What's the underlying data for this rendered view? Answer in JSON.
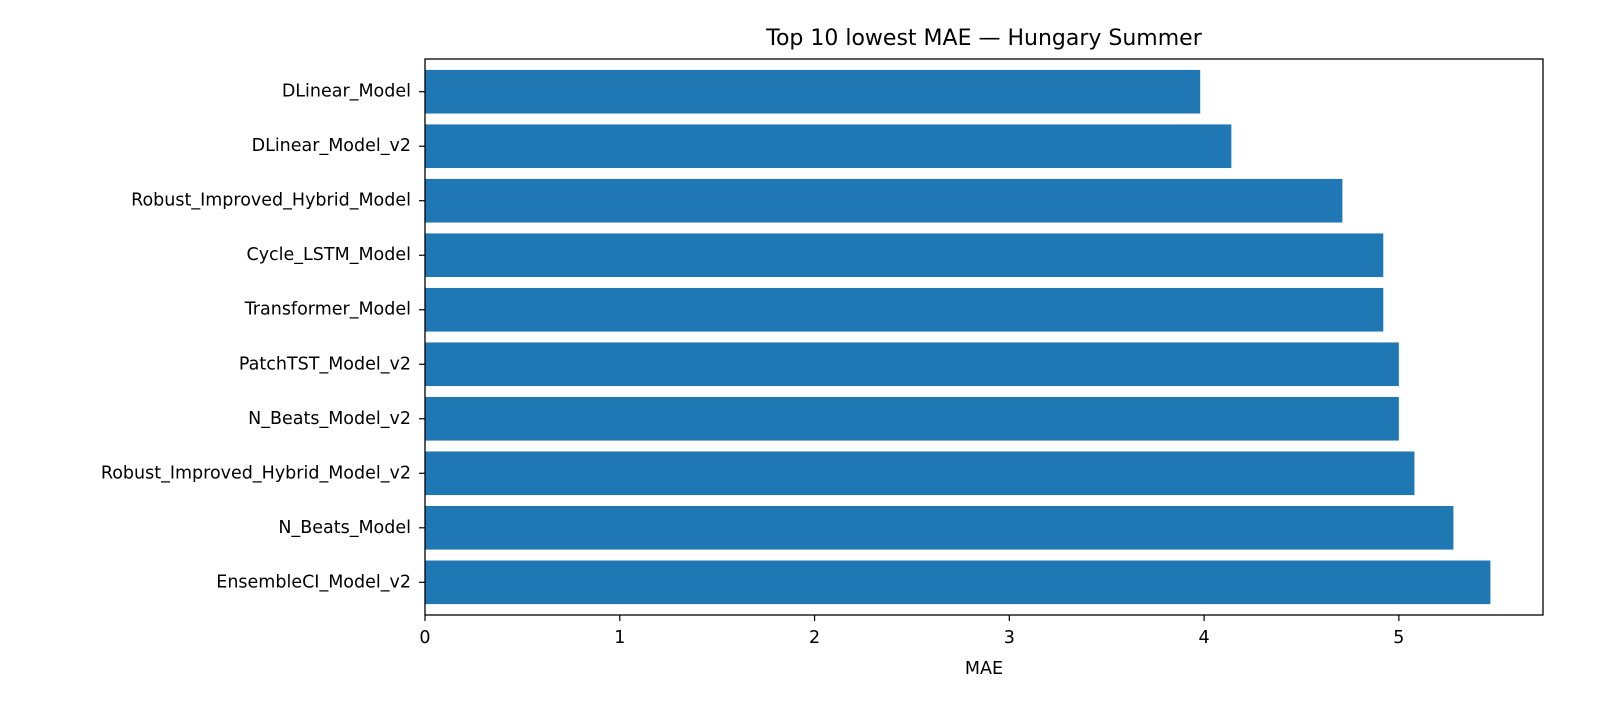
{
  "chart_data": {
    "type": "bar",
    "orientation": "horizontal",
    "title": "Top 10 lowest MAE — Hungary Summer",
    "xlabel": "MAE",
    "ylabel": "",
    "xlim": [
      0,
      5.74
    ],
    "xticks": [
      0,
      1,
      2,
      3,
      4,
      5
    ],
    "grid": false,
    "bar_color": "#1f77b4",
    "categories": [
      "DLinear_Model",
      "DLinear_Model_v2",
      "Robust_Improved_Hybrid_Model",
      "Cycle_LSTM_Model",
      "Transformer_Model",
      "PatchTST_Model_v2",
      "N_Beats_Model_v2",
      "Robust_Improved_Hybrid_Model_v2",
      "N_Beats_Model",
      "EnsembleCI_Model_v2"
    ],
    "values": [
      3.98,
      4.14,
      4.71,
      4.92,
      4.92,
      5.0,
      5.0,
      5.08,
      5.28,
      5.47
    ]
  }
}
